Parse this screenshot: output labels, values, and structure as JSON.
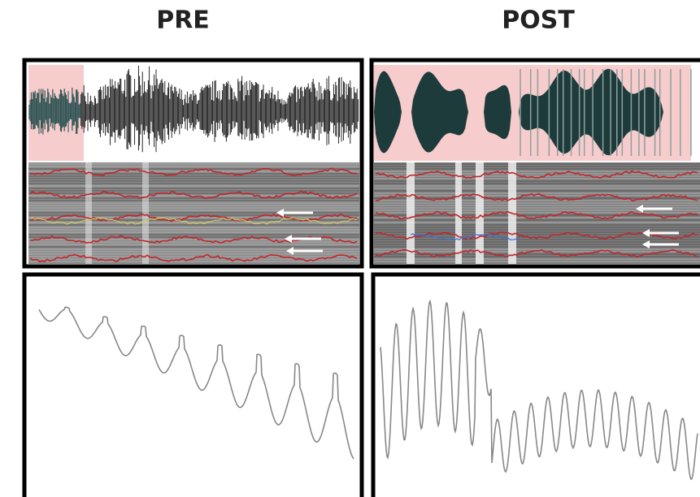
{
  "labels": {
    "pre": "PRE",
    "post": "POST"
  }
}
